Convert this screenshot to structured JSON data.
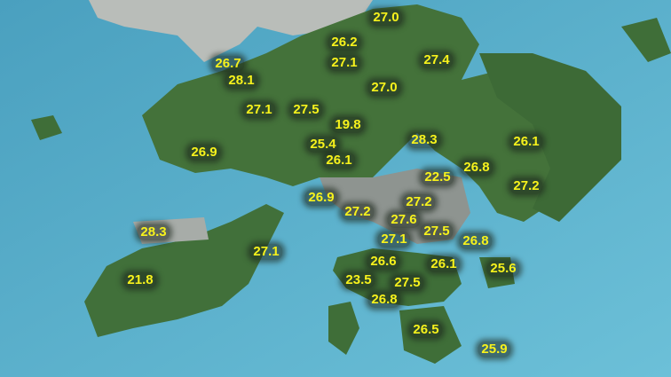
{
  "map": {
    "colors": {
      "sea": "#5fb3cf",
      "land": "#3f6e38",
      "urban": "#9a9f9c",
      "label_text": "#f7f21c"
    },
    "stations": [
      {
        "value": "27.0"
      },
      {
        "value": "26.2"
      },
      {
        "value": "27.1"
      },
      {
        "value": "27.4"
      },
      {
        "value": "26.7"
      },
      {
        "value": "28.1"
      },
      {
        "value": "27.0"
      },
      {
        "value": "27.1"
      },
      {
        "value": "27.5"
      },
      {
        "value": "19.8"
      },
      {
        "value": "28.3"
      },
      {
        "value": "26.1"
      },
      {
        "value": "25.4"
      },
      {
        "value": "26.9"
      },
      {
        "value": "26.1"
      },
      {
        "value": "26.8"
      },
      {
        "value": "22.5"
      },
      {
        "value": "27.2"
      },
      {
        "value": "26.9"
      },
      {
        "value": "27.2"
      },
      {
        "value": "27.2"
      },
      {
        "value": "27.6"
      },
      {
        "value": "28.3"
      },
      {
        "value": "27.5"
      },
      {
        "value": "26.8"
      },
      {
        "value": "27.1"
      },
      {
        "value": "27.1"
      },
      {
        "value": "26.6"
      },
      {
        "value": "26.1"
      },
      {
        "value": "25.6"
      },
      {
        "value": "21.8"
      },
      {
        "value": "23.5"
      },
      {
        "value": "27.5"
      },
      {
        "value": "26.8"
      },
      {
        "value": "26.5"
      },
      {
        "value": "25.9"
      }
    ]
  }
}
